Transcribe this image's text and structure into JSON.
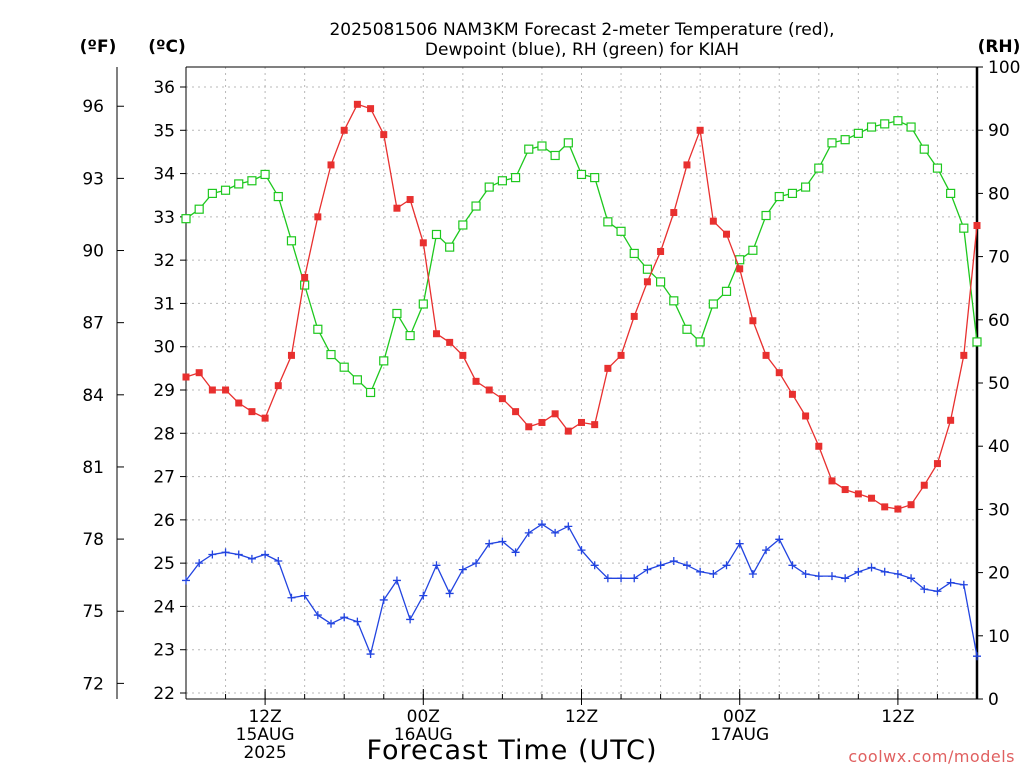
{
  "title_line1": "2025081506 NAM3KM Forecast 2-meter Temperature (red),",
  "title_line2": "Dewpoint (blue), RH (green) for KIAH",
  "units": {
    "f": "(ºF)",
    "c": "(ºC)",
    "rh": "(RH)"
  },
  "xlabel": "Forecast Time (UTC)",
  "credit": "coolwx.com/models",
  "colors": {
    "temperature": "#e8302f",
    "dewpoint": "#2244e0",
    "rh": "#1ec81e",
    "grid": "#b8b8b8"
  },
  "chart_data": {
    "type": "line",
    "x_unit": "forecast hour from 2025-08-15 06Z",
    "x_range": [
      0,
      60
    ],
    "ylim_c": [
      22,
      36
    ],
    "ylim_f_ticks": [
      72,
      75,
      78,
      81,
      84,
      87,
      90,
      93,
      96
    ],
    "ylim_rh": [
      0,
      100
    ],
    "yticks_c": [
      22,
      23,
      24,
      25,
      26,
      27,
      28,
      29,
      30,
      31,
      32,
      33,
      34,
      35,
      36
    ],
    "yticks_rh": [
      0,
      10,
      20,
      30,
      40,
      50,
      60,
      70,
      80,
      90,
      100
    ],
    "x_ticks": [
      {
        "hour": 6,
        "lines": [
          "12Z",
          "15AUG",
          "2025"
        ]
      },
      {
        "hour": 18,
        "lines": [
          "00Z",
          "16AUG"
        ]
      },
      {
        "hour": 30,
        "lines": [
          "12Z"
        ]
      },
      {
        "hour": 42,
        "lines": [
          "00Z",
          "17AUG"
        ]
      },
      {
        "hour": 54,
        "lines": [
          "12Z"
        ]
      }
    ],
    "x": [
      0,
      1,
      2,
      3,
      4,
      5,
      6,
      7,
      8,
      9,
      10,
      11,
      12,
      13,
      14,
      15,
      16,
      17,
      18,
      19,
      20,
      21,
      22,
      23,
      24,
      25,
      26,
      27,
      28,
      29,
      30,
      31,
      32,
      33,
      34,
      35,
      36,
      37,
      38,
      39,
      40,
      41,
      42,
      43,
      44,
      45,
      46,
      47,
      48,
      49,
      50,
      51,
      52,
      53,
      54,
      55,
      56,
      57,
      58,
      59,
      60
    ],
    "series": [
      {
        "name": "Temperature",
        "axis": "celsius",
        "marker": "filled-square",
        "values": [
          29.3,
          29.4,
          29.0,
          29.0,
          28.7,
          28.5,
          28.35,
          29.1,
          29.8,
          31.6,
          33.0,
          34.2,
          35.0,
          35.6,
          35.5,
          34.9,
          33.2,
          33.4,
          32.4,
          30.3,
          30.1,
          29.8,
          29.2,
          29.0,
          28.8,
          28.5,
          28.15,
          28.25,
          28.45,
          28.05,
          28.25,
          28.2,
          29.5,
          29.8,
          30.7,
          31.5,
          32.2,
          33.1,
          34.2,
          35.0,
          32.9,
          32.6,
          31.8,
          30.6,
          29.8,
          29.4,
          28.9,
          28.4,
          27.7,
          26.9,
          26.7,
          26.6,
          26.5,
          26.3,
          26.25,
          26.35,
          26.8,
          27.3,
          28.3,
          29.8,
          32.8
        ]
      },
      {
        "name": "Dewpoint",
        "axis": "celsius",
        "marker": "plus",
        "values": [
          24.6,
          25.0,
          25.2,
          25.25,
          25.2,
          25.1,
          25.2,
          25.05,
          24.2,
          24.25,
          23.8,
          23.6,
          23.75,
          23.65,
          22.9,
          24.15,
          24.6,
          23.7,
          24.25,
          24.95,
          24.3,
          24.85,
          25.0,
          25.45,
          25.5,
          25.25,
          25.7,
          25.9,
          25.7,
          25.85,
          25.3,
          24.95,
          24.65,
          24.65,
          24.65,
          24.85,
          24.95,
          25.05,
          24.95,
          24.8,
          24.75,
          24.95,
          25.45,
          24.75,
          25.3,
          25.55,
          24.95,
          24.75,
          24.7,
          24.7,
          24.65,
          24.8,
          24.9,
          24.8,
          24.75,
          24.65,
          24.4,
          24.35,
          24.55,
          24.5,
          22.85
        ]
      },
      {
        "name": "RH",
        "axis": "rh",
        "marker": "open-square",
        "values": [
          76,
          77.5,
          80,
          80.5,
          81.5,
          82,
          83,
          79.5,
          72.5,
          65.5,
          58.5,
          54.5,
          52.5,
          50.5,
          48.5,
          53.5,
          61,
          57.5,
          62.5,
          73.5,
          71.5,
          75,
          78,
          81,
          82,
          82.5,
          87,
          87.5,
          86,
          88,
          83,
          82.5,
          75.5,
          74,
          70.5,
          68,
          66,
          63,
          58.5,
          56.5,
          62.5,
          64.5,
          69.5,
          71,
          76.5,
          79.5,
          80,
          81,
          84,
          88,
          88.5,
          89.5,
          90.5,
          91,
          91.5,
          90.5,
          87,
          84,
          80,
          74.5,
          56.5
        ]
      }
    ]
  }
}
